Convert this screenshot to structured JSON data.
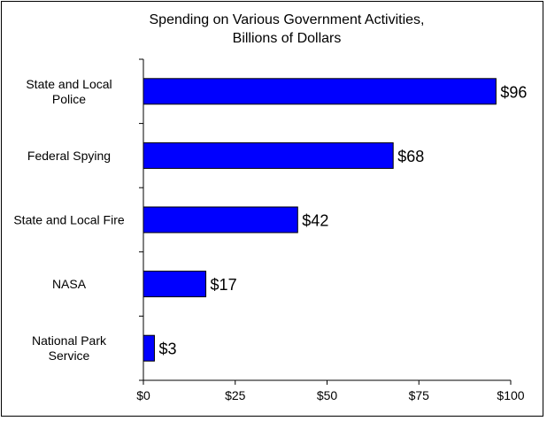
{
  "chart_data": {
    "type": "bar",
    "orientation": "horizontal",
    "title": "Spending on Various Government Activities,",
    "subtitle": "Billions of Dollars",
    "categories": [
      [
        "State and Local",
        "Police"
      ],
      [
        "Federal Spying"
      ],
      [
        "State and Local Fire"
      ],
      [
        "NASA"
      ],
      [
        "National Park",
        "Service"
      ]
    ],
    "values": [
      96,
      68,
      42,
      17,
      3
    ],
    "data_labels": [
      "$96",
      "$68",
      "$42",
      "$17",
      "$3"
    ],
    "xlim": [
      0,
      100
    ],
    "xticks": [
      0,
      25,
      50,
      75,
      100
    ],
    "xtick_labels": [
      "$0",
      "$25",
      "$50",
      "$75",
      "$100"
    ],
    "xlabel": "",
    "ylabel": "",
    "grid": false,
    "bar_color": "#0000ff"
  }
}
